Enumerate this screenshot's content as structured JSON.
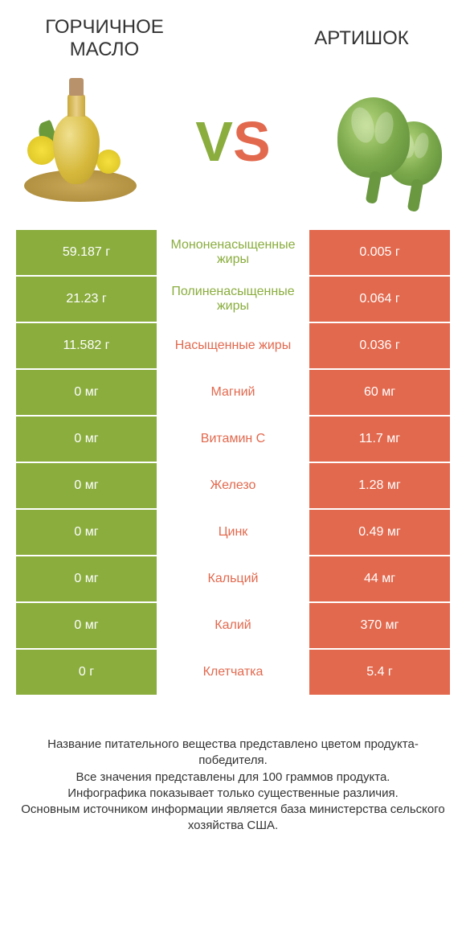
{
  "colors": {
    "left": "#8aad3e",
    "right": "#e2694e",
    "text": "#333333"
  },
  "products": {
    "left": {
      "title": "ГОРЧИЧНОЕ МАСЛО"
    },
    "right": {
      "title": "АРТИШОК"
    }
  },
  "vs": {
    "v": "V",
    "s": "S"
  },
  "rows": [
    {
      "left": "59.187 г",
      "label": "Мононенасыщенные жиры",
      "right": "0.005 г",
      "winner": "left"
    },
    {
      "left": "21.23 г",
      "label": "Полиненасыщенные жиры",
      "right": "0.064 г",
      "winner": "left"
    },
    {
      "left": "11.582 г",
      "label": "Насыщенные жиры",
      "right": "0.036 г",
      "winner": "right"
    },
    {
      "left": "0 мг",
      "label": "Магний",
      "right": "60 мг",
      "winner": "right"
    },
    {
      "left": "0 мг",
      "label": "Витамин C",
      "right": "11.7 мг",
      "winner": "right"
    },
    {
      "left": "0 мг",
      "label": "Железо",
      "right": "1.28 мг",
      "winner": "right"
    },
    {
      "left": "0 мг",
      "label": "Цинк",
      "right": "0.49 мг",
      "winner": "right"
    },
    {
      "left": "0 мг",
      "label": "Кальций",
      "right": "44 мг",
      "winner": "right"
    },
    {
      "left": "0 мг",
      "label": "Калий",
      "right": "370 мг",
      "winner": "right"
    },
    {
      "left": "0 г",
      "label": "Клетчатка",
      "right": "5.4 г",
      "winner": "right"
    }
  ],
  "footer": {
    "line1": "Название питательного вещества представлено цветом продукта-победителя.",
    "line2": "Все значения представлены для 100 граммов продукта.",
    "line3": "Инфографика показывает только существенные различия.",
    "line4": "Основным источником информации является база министерства сельского хозяйства США."
  }
}
